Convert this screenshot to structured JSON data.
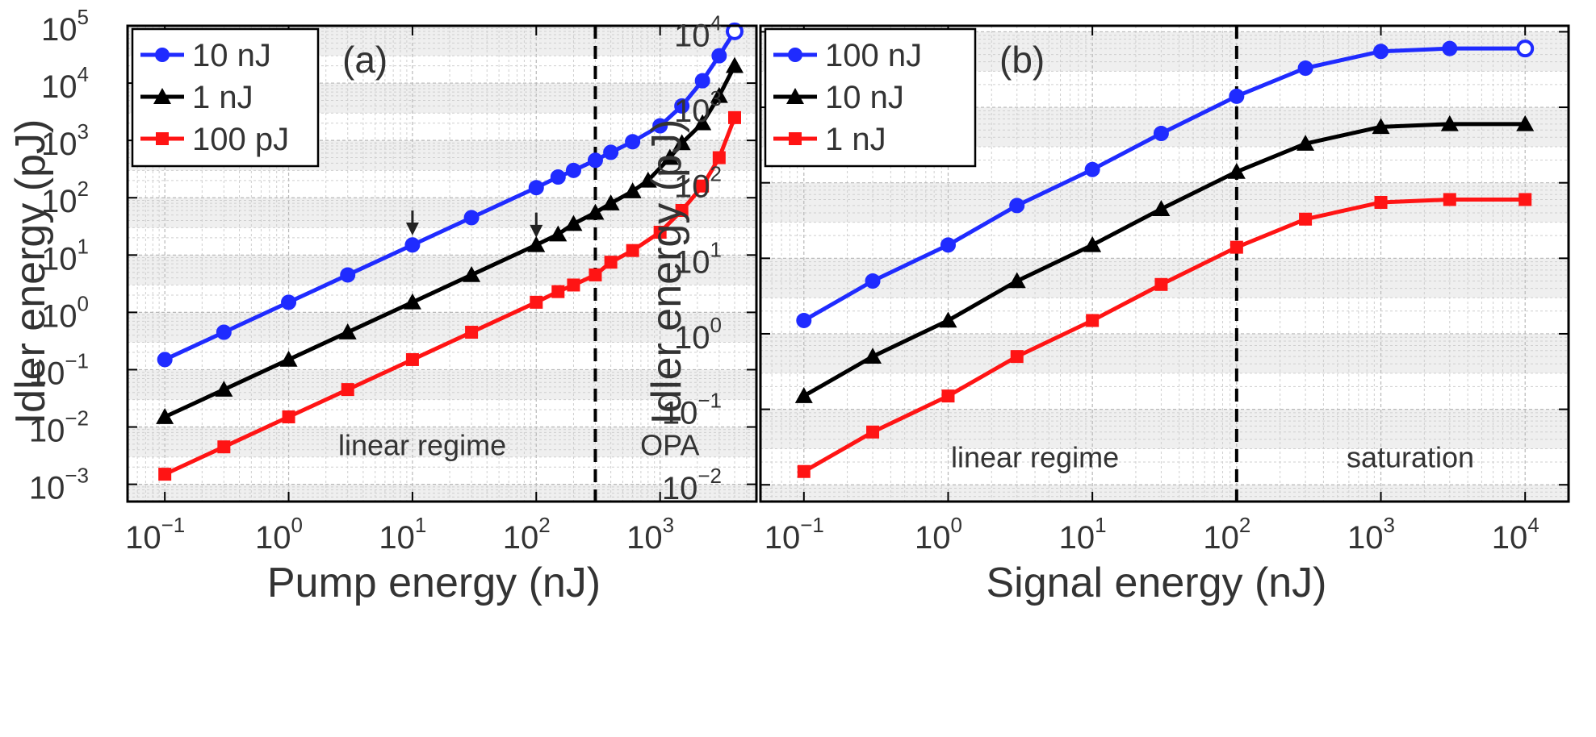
{
  "chart_data": [
    {
      "type": "line",
      "panel": "(a)",
      "xlabel": "Pump energy (nJ)",
      "ylabel": "Idler energy (pJ)",
      "xscale": "log",
      "yscale": "log",
      "xlim": [
        0.05,
        6000
      ],
      "ylim": [
        0.0005,
        100000
      ],
      "xticks": [
        {
          "base": "10",
          "exp": "−1"
        },
        {
          "base": "10",
          "exp": "0"
        },
        {
          "base": "10",
          "exp": "1"
        },
        {
          "base": "10",
          "exp": "2"
        },
        {
          "base": "10",
          "exp": "3"
        }
      ],
      "yticks": [
        {
          "base": "10",
          "exp": "−3"
        },
        {
          "base": "10",
          "exp": "−2"
        },
        {
          "base": "10",
          "exp": "−1"
        },
        {
          "base": "10",
          "exp": "0"
        },
        {
          "base": "10",
          "exp": "1"
        },
        {
          "base": "10",
          "exp": "2"
        },
        {
          "base": "10",
          "exp": "3"
        },
        {
          "base": "10",
          "exp": "4"
        },
        {
          "base": "10",
          "exp": "5"
        }
      ],
      "legend_position": "top-left",
      "vline": 300,
      "annotations": [
        {
          "text": "linear regime",
          "x": 12,
          "y": 0.0032
        },
        {
          "text": "OPA",
          "x": 1200,
          "y": 0.0032
        }
      ],
      "arrows": [
        {
          "x": 10,
          "y_from": 60,
          "y_to": 22
        },
        {
          "x": 100,
          "y_from": 55,
          "y_to": 20
        }
      ],
      "series": [
        {
          "name": "10 nJ",
          "color": "#1f2bff",
          "marker": "circle",
          "x": [
            0.1,
            0.3,
            1,
            3,
            10,
            30,
            100,
            150,
            200,
            300,
            400,
            600,
            1000,
            1500,
            2200,
            3000,
            4000
          ],
          "y": [
            0.15,
            0.45,
            1.5,
            4.5,
            15,
            45,
            150,
            230,
            300,
            450,
            620,
            950,
            1800,
            4000,
            11000,
            30000,
            80000
          ]
        },
        {
          "name": "1 nJ",
          "color": "#000000",
          "marker": "triangle",
          "x": [
            0.1,
            0.3,
            1,
            3,
            10,
            30,
            100,
            150,
            200,
            300,
            400,
            600,
            800,
            1200,
            1500,
            2200,
            3000,
            4000
          ],
          "y": [
            0.015,
            0.045,
            0.15,
            0.45,
            1.5,
            4.5,
            15,
            23,
            35,
            55,
            80,
            130,
            200,
            500,
            900,
            2000,
            6000,
            20000
          ]
        },
        {
          "name": "100 pJ",
          "color": "#ff1414",
          "marker": "square",
          "x": [
            0.1,
            0.3,
            1,
            3,
            10,
            30,
            100,
            150,
            200,
            300,
            400,
            600,
            1000,
            1500,
            2200,
            3000,
            4000
          ],
          "y": [
            0.0015,
            0.0045,
            0.015,
            0.045,
            0.15,
            0.45,
            1.5,
            2.3,
            3,
            4.5,
            7.5,
            12,
            25,
            60,
            160,
            500,
            2500
          ]
        }
      ]
    },
    {
      "type": "line",
      "panel": "(b)",
      "xlabel": "Signal energy (nJ)",
      "ylabel": "Idler energy (pJ)",
      "xscale": "log",
      "yscale": "log",
      "xlim": [
        0.05,
        20000
      ],
      "ylim": [
        0.006,
        12000
      ],
      "xticks": [
        {
          "base": "10",
          "exp": "−1"
        },
        {
          "base": "10",
          "exp": "0"
        },
        {
          "base": "10",
          "exp": "1"
        },
        {
          "base": "10",
          "exp": "2"
        },
        {
          "base": "10",
          "exp": "3"
        },
        {
          "base": "10",
          "exp": "4"
        }
      ],
      "yticks": [
        {
          "base": "10",
          "exp": "−2"
        },
        {
          "base": "10",
          "exp": "−1"
        },
        {
          "base": "10",
          "exp": "0"
        },
        {
          "base": "10",
          "exp": "1"
        },
        {
          "base": "10",
          "exp": "2"
        },
        {
          "base": "10",
          "exp": "3"
        },
        {
          "base": "10",
          "exp": "4"
        }
      ],
      "legend_position": "top-left",
      "vline": 100,
      "annotations": [
        {
          "text": "linear regime",
          "x": 4,
          "y": 0.017
        },
        {
          "text": "saturation",
          "x": 1600,
          "y": 0.017
        }
      ],
      "arrows": [],
      "series": [
        {
          "name": "100 nJ",
          "color": "#1f2bff",
          "marker": "circle",
          "x": [
            0.1,
            0.3,
            1,
            3,
            10,
            30,
            100,
            300,
            1000,
            3000,
            10000
          ],
          "y": [
            1.5,
            5,
            15,
            50,
            150,
            450,
            1400,
            3300,
            5500,
            6000,
            6000
          ]
        },
        {
          "name": "10 nJ",
          "color": "#000000",
          "marker": "triangle",
          "x": [
            0.1,
            0.3,
            1,
            3,
            10,
            30,
            100,
            300,
            1000,
            3000,
            10000
          ],
          "y": [
            0.15,
            0.5,
            1.5,
            5,
            15,
            45,
            140,
            330,
            550,
            600,
            600
          ]
        },
        {
          "name": "1 nJ",
          "color": "#ff1414",
          "marker": "square",
          "x": [
            0.1,
            0.3,
            1,
            3,
            10,
            30,
            100,
            300,
            1000,
            3000,
            10000
          ],
          "y": [
            0.015,
            0.05,
            0.15,
            0.5,
            1.5,
            4.5,
            14,
            33,
            55,
            60,
            60
          ]
        }
      ]
    }
  ]
}
